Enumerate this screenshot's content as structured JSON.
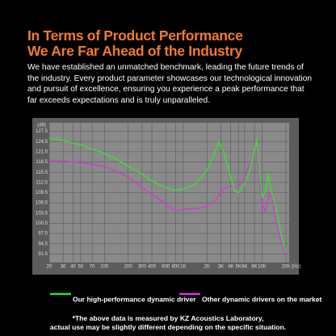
{
  "chart_data": {
    "type": "line",
    "title": "In Terms of Product Performance",
    "subtitle": "We Are Far Ahead of the Industry",
    "description": "We have established an unmatched benchmark, leading the future trends of the industry. Every product parameter showcases our technological innovation and pursuit of excellence, ensuring you experience a peak performance that far exceeds expectations and is truly unparalleled.",
    "footnote": [
      "*The above data is measured by KZ Acoustics Laboratory,",
      "actual use may be slightly different depending on the specific situation."
    ],
    "y_label": "(dB)",
    "x_label": "(Hz)",
    "x_scale": "log",
    "grid": true,
    "x": [
      20,
      30,
      50,
      70,
      100,
      150,
      200,
      300,
      400,
      500,
      600,
      700,
      800,
      1000,
      1200,
      1500,
      2000,
      2500,
      2800,
      3200,
      4000,
      4500,
      5000,
      6000,
      7000,
      8000,
      8500,
      9000,
      10000,
      11000,
      12000,
      13000,
      15000,
      17000,
      20000
    ],
    "series": [
      {
        "name": "Our high-performance dynamic driver",
        "color": "#3ae02c",
        "values": [
          125.5,
          124.8,
          123.5,
          122.3,
          121,
          119,
          117.3,
          115,
          113,
          111.8,
          111,
          110.5,
          110.2,
          110.5,
          111.2,
          112.5,
          116,
          121,
          124.5,
          122,
          114,
          110,
          109.5,
          112,
          116,
          122,
          125,
          119,
          108,
          110,
          115,
          110,
          105,
          98,
          92
        ]
      },
      {
        "name": "Other dynamic drivers on the market",
        "color": "#d23ad6",
        "values": [
          119,
          118.8,
          118.3,
          117.8,
          117.2,
          115.5,
          114,
          111,
          109,
          107.5,
          106,
          105,
          104.2,
          104.5,
          104.8,
          104.8,
          105.5,
          107,
          108.5,
          110.5,
          111.5,
          111,
          111.5,
          114,
          118,
          121,
          122.5,
          116,
          106,
          104,
          108,
          110,
          101,
          96,
          91
        ]
      }
    ],
    "xlim": [
      20,
      22000
    ],
    "xticks": [
      20,
      30,
      40,
      50,
      70,
      100,
      200,
      300,
      400,
      600,
      800,
      {
        "value": 1000,
        "label": "1K"
      },
      {
        "value": 2000,
        "label": "2K"
      },
      {
        "value": 3000,
        "label": "3K"
      },
      {
        "value": 4000,
        "label": "4K"
      },
      {
        "value": 5000,
        "label": "5K"
      },
      {
        "value": 6000,
        "label": "6K"
      },
      {
        "value": 8000,
        "label": "8K"
      },
      {
        "value": 10000,
        "label": "10K"
      },
      {
        "value": 20000,
        "label": "20K"
      }
    ],
    "ylim": [
      89,
      130
    ],
    "yticks": [
      127.5,
      124.5,
      121.5,
      118.5,
      115.5,
      112.5,
      109.5,
      106.5,
      103.5,
      100.5,
      97.5,
      94.5,
      91.5
    ]
  }
}
